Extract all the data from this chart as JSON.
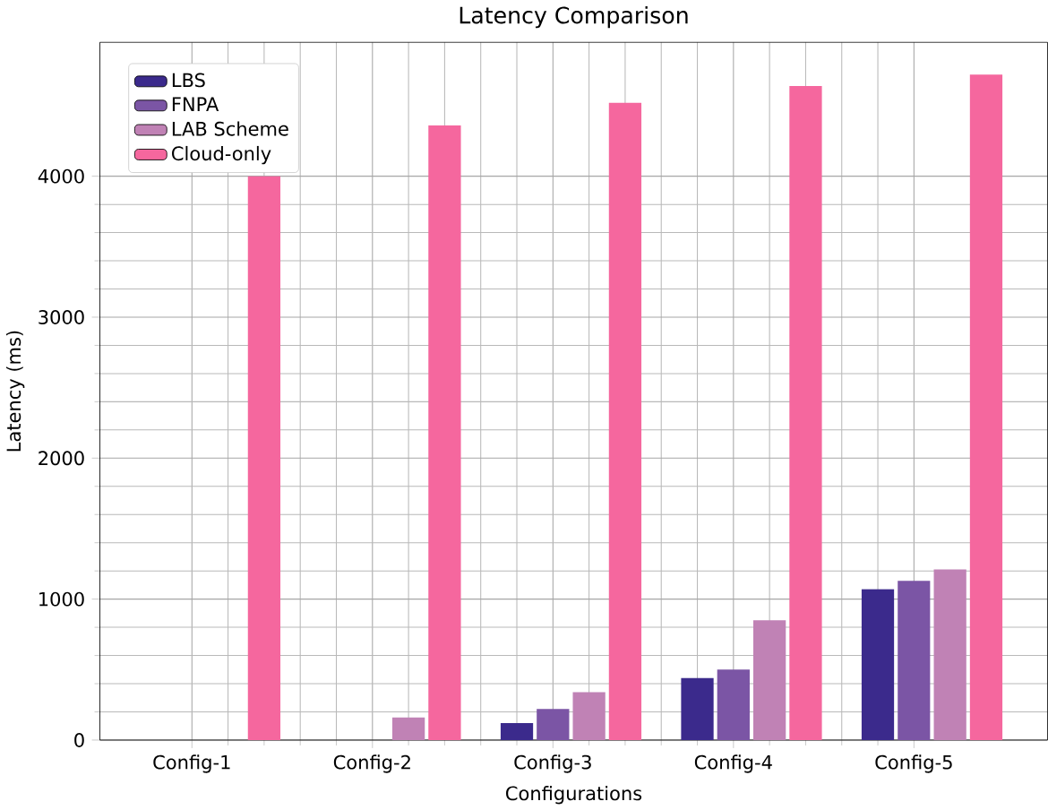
{
  "chart_data": {
    "type": "bar",
    "title": "Latency Comparison",
    "xlabel": "Configurations",
    "ylabel": "Latency (ms)",
    "categories": [
      "Config-1",
      "Config-2",
      "Config-3",
      "Config-4",
      "Config-5"
    ],
    "series": [
      {
        "name": "LBS",
        "color": "#3b2a8c",
        "values": [
          null,
          null,
          120,
          440,
          1070
        ]
      },
      {
        "name": "FNPA",
        "color": "#7b55a5",
        "values": [
          null,
          null,
          220,
          500,
          1130
        ]
      },
      {
        "name": "LAB Scheme",
        "color": "#c082b5",
        "values": [
          null,
          160,
          340,
          850,
          1210
        ]
      },
      {
        "name": "Cloud-only",
        "color": "#f5679e",
        "values": [
          4000,
          4360,
          4520,
          4640,
          4720
        ]
      }
    ],
    "ylim": [
      0,
      4950
    ],
    "yticks": [
      0,
      1000,
      2000,
      3000,
      4000
    ],
    "grid": true,
    "legend": "top left"
  }
}
